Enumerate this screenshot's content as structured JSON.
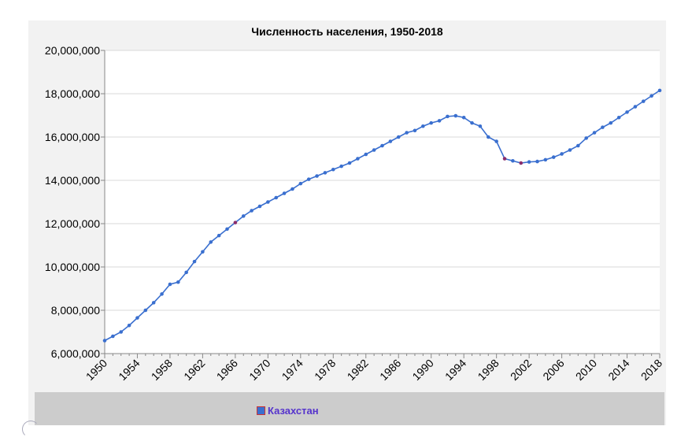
{
  "chart_data": {
    "type": "line",
    "title": "Численность населения, 1950-2018",
    "xlabel": "",
    "ylabel": "",
    "xlim": [
      1950,
      2018
    ],
    "ylim": [
      6000000,
      20000000
    ],
    "y_ticks": [
      "6,000,000",
      "8,000,000",
      "10,000,000",
      "12,000,000",
      "14,000,000",
      "16,000,000",
      "18,000,000",
      "20,000,000"
    ],
    "x_ticks": [
      "1950",
      "1954",
      "1958",
      "1962",
      "1966",
      "1970",
      "1974",
      "1978",
      "1982",
      "1986",
      "1990",
      "1994",
      "1998",
      "2002",
      "2006",
      "2010",
      "2014",
      "2018"
    ],
    "grid": true,
    "legend_position": "bottom",
    "series": [
      {
        "name": "Казахстан",
        "color": "#3a6fcf",
        "x": [
          1950,
          1951,
          1952,
          1953,
          1954,
          1955,
          1956,
          1957,
          1958,
          1959,
          1960,
          1961,
          1962,
          1963,
          1964,
          1965,
          1966,
          1967,
          1968,
          1969,
          1970,
          1971,
          1972,
          1973,
          1974,
          1975,
          1976,
          1977,
          1978,
          1979,
          1980,
          1981,
          1982,
          1983,
          1984,
          1985,
          1986,
          1987,
          1988,
          1989,
          1990,
          1991,
          1992,
          1993,
          1994,
          1995,
          1996,
          1997,
          1998,
          1999,
          2000,
          2001,
          2002,
          2003,
          2004,
          2005,
          2006,
          2007,
          2008,
          2009,
          2010,
          2011,
          2012,
          2013,
          2014,
          2015,
          2016,
          2017,
          2018
        ],
        "values": [
          6600000,
          6800000,
          7000000,
          7300000,
          7650000,
          8000000,
          8350000,
          8750000,
          9200000,
          9300000,
          9750000,
          10250000,
          10700000,
          11150000,
          11450000,
          11750000,
          12050000,
          12350000,
          12600000,
          12800000,
          13000000,
          13200000,
          13400000,
          13600000,
          13850000,
          14050000,
          14200000,
          14350000,
          14500000,
          14650000,
          14800000,
          15000000,
          15200000,
          15400000,
          15600000,
          15800000,
          16000000,
          16200000,
          16300000,
          16500000,
          16650000,
          16750000,
          16950000,
          16980000,
          16900000,
          16650000,
          16500000,
          16000000,
          15800000,
          15000000,
          14900000,
          14800000,
          14850000,
          14870000,
          14950000,
          15070000,
          15220000,
          15400000,
          15600000,
          15950000,
          16200000,
          16450000,
          16650000,
          16900000,
          17150000,
          17400000,
          17650000,
          17900000,
          18150000
        ],
        "highlight_years": [
          1966,
          1999,
          2001
        ]
      }
    ]
  },
  "legend": {
    "label": "Казахстан",
    "swatch_color": "#3a6fcf"
  }
}
